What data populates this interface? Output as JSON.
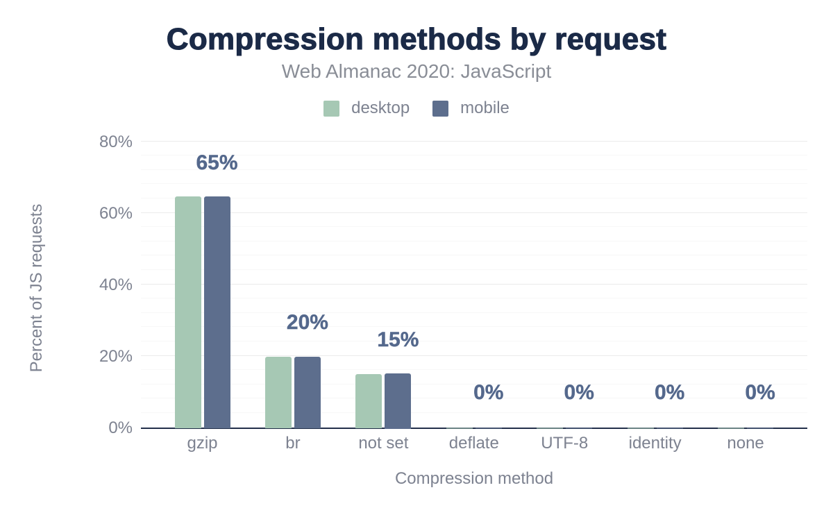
{
  "chart_data": {
    "type": "bar",
    "title": "Compression methods by request",
    "subtitle": "Web Almanac 2020: JavaScript",
    "xlabel": "Compression method",
    "ylabel": "Percent of JS requests",
    "categories": [
      "gzip",
      "br",
      "not set",
      "deflate",
      "UTF-8",
      "identity",
      "none"
    ],
    "series": [
      {
        "name": "desktop",
        "color": "#a6c8b4",
        "values": [
          64.5,
          19.8,
          14.9,
          0.2,
          0.2,
          0.2,
          0.2
        ]
      },
      {
        "name": "mobile",
        "color": "#5d6e8d",
        "values": [
          64.5,
          19.8,
          15.0,
          0.2,
          0.2,
          0.2,
          0.2
        ]
      }
    ],
    "bar_labels": {
      "attached_series": "mobile",
      "values": [
        "65%",
        "20%",
        "15%",
        "0%",
        "0%",
        "0%",
        "0%"
      ]
    },
    "y_ticks": {
      "values": [
        0,
        20,
        40,
        60,
        80
      ],
      "labels": [
        "0%",
        "20%",
        "40%",
        "60%",
        "80%"
      ]
    },
    "ylim": [
      0,
      80
    ],
    "grid": {
      "major_step": 20,
      "minor_step": 4,
      "major_color": "#ebebeb",
      "minor_color": "#f7f7f7"
    },
    "legend_position": "top"
  },
  "colors": {
    "background": "#ffffff",
    "title": "#1b2a47",
    "subtitle": "#898d96",
    "axis_text": "#7d8290",
    "axis_line": "#222f4a",
    "bar_label": "#54688c",
    "desktop": "#a6c8b4",
    "mobile": "#5d6e8d"
  }
}
